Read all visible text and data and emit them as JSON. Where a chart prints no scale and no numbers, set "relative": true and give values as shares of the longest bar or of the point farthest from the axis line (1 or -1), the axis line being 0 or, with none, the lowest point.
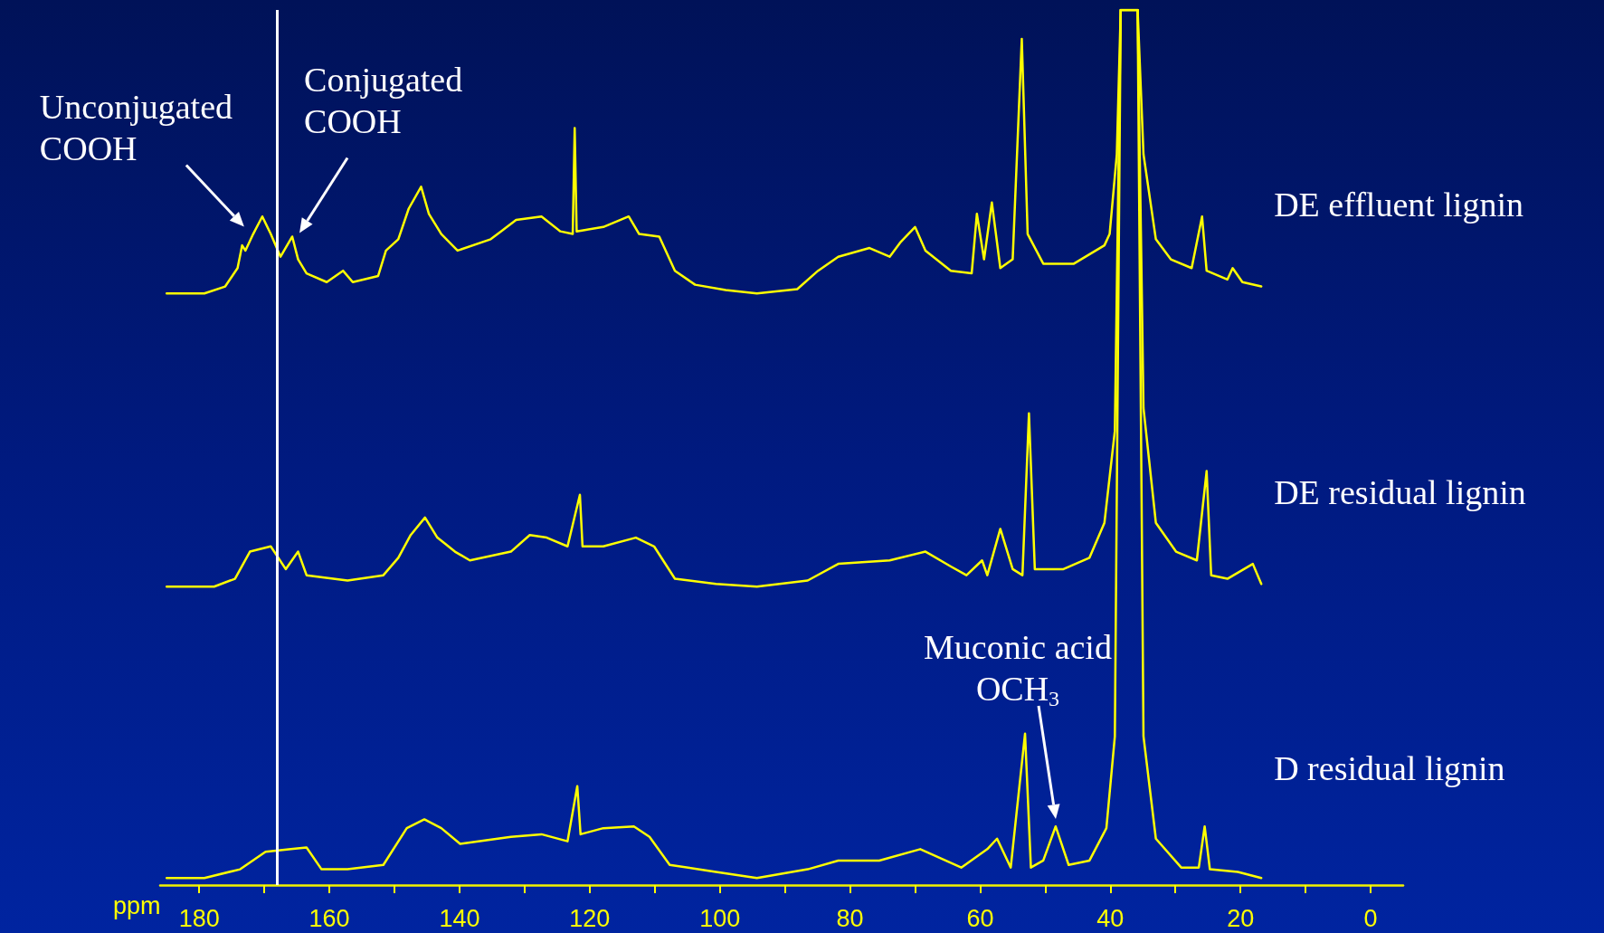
{
  "chart_data": {
    "type": "line",
    "relative": true,
    "xlim": [
      186,
      -5
    ],
    "legend": false,
    "grid": false,
    "marker": "none",
    "line_style": "solid",
    "xlabel": "ppm",
    "xticks": [
      180,
      {
        "value": 170,
        "label": null
      },
      160,
      {
        "value": 150,
        "label": null
      },
      140,
      {
        "value": 130,
        "label": null
      },
      120,
      {
        "value": 110,
        "label": null
      },
      100,
      {
        "value": 90,
        "label": null
      },
      80,
      {
        "value": 70,
        "label": null
      },
      60,
      {
        "value": 50,
        "label": null
      },
      40,
      {
        "value": 30,
        "label": null
      },
      20,
      {
        "value": 10,
        "label": null
      },
      0
    ],
    "annotations": [
      {
        "text": "Unconjugated\nCOOH",
        "x": 171.7,
        "y": 0.744
      },
      {
        "text": "Conjugated\nCOOH",
        "x": 165.7,
        "y": 0.741
      },
      "Muconic acid\nOCH$_{3}$"
    ],
    "ref_lines": [
      {
        "axis": "x",
        "value": 168,
        "color": "#ffffff"
      }
    ],
    "series": [
      {
        "name": "DE effluent lignin",
        "color": "#ffff00",
        "x": [
          185,
          179.2,
          176,
          174.1,
          173.4,
          172.9,
          171.7,
          170.3,
          169,
          167.5,
          165.7,
          164.8,
          163.5,
          160.4,
          157.9,
          156.4,
          152.5,
          151.3,
          149.4,
          147.8,
          145.9,
          144.7,
          142.8,
          140.3,
          135.2,
          131.3,
          127.4,
          124.5,
          122.6,
          122.3,
          122.0,
          117.9,
          114,
          112.4,
          109.3,
          106.9,
          103.8,
          99.1,
          94.3,
          88.1,
          84.9,
          81.8,
          77.0,
          73.9,
          72.3,
          70.0,
          68.4,
          64.5,
          61.3,
          60.5,
          59.4,
          58.2,
          56.9,
          55.0,
          53.6,
          52.7,
          50.3,
          45.6,
          40.9,
          40.1,
          39.0,
          38.4,
          35.8,
          34.9,
          33.0,
          30.7,
          27.5,
          25.9,
          25.2,
          22.0,
          21.2,
          19.7,
          16.8
        ],
        "values": [
          0.676,
          0.676,
          0.684,
          0.705,
          0.731,
          0.725,
          0.744,
          0.764,
          0.744,
          0.718,
          0.741,
          0.715,
          0.699,
          0.689,
          0.702,
          0.689,
          0.696,
          0.725,
          0.738,
          0.773,
          0.798,
          0.767,
          0.744,
          0.725,
          0.738,
          0.76,
          0.764,
          0.747,
          0.744,
          0.865,
          0.747,
          0.752,
          0.764,
          0.744,
          0.741,
          0.702,
          0.686,
          0.68,
          0.676,
          0.681,
          0.702,
          0.718,
          0.728,
          0.718,
          0.734,
          0.752,
          0.725,
          0.702,
          0.699,
          0.767,
          0.715,
          0.78,
          0.705,
          0.715,
          0.967,
          0.744,
          0.71,
          0.71,
          0.731,
          0.744,
          0.835,
          1,
          1,
          0.835,
          0.738,
          0.715,
          0.705,
          0.764,
          0.702,
          0.692,
          0.705,
          0.689,
          0.684
        ]
      },
      {
        "name": "DE residual lignin",
        "color": "#ffff00",
        "x": [
          185,
          177.7,
          174.5,
          172.2,
          169.0,
          166.7,
          164.8,
          163.5,
          157.2,
          151.7,
          149.4,
          147.5,
          145.3,
          143.4,
          140.7,
          138.4,
          132.1,
          129.2,
          126.6,
          123.4,
          121.5,
          121.1,
          117.9,
          112.9,
          110.1,
          106.9,
          100.6,
          94.3,
          86.5,
          81.8,
          73.9,
          68.4,
          64.5,
          62.1,
          59.7,
          58.9,
          56.9,
          55.0,
          53.5,
          52.5,
          51.6,
          47.2,
          43.2,
          40.9,
          39.3,
          38.4,
          35.8,
          34.9,
          33.0,
          29.9,
          26.7,
          25.2,
          24.5,
          22.0,
          18.1,
          16.8
        ],
        "values": [
          0.341,
          0.341,
          0.35,
          0.381,
          0.387,
          0.361,
          0.381,
          0.354,
          0.348,
          0.354,
          0.374,
          0.4,
          0.42,
          0.397,
          0.381,
          0.371,
          0.381,
          0.4,
          0.397,
          0.387,
          0.446,
          0.387,
          0.387,
          0.397,
          0.387,
          0.35,
          0.344,
          0.341,
          0.348,
          0.367,
          0.371,
          0.381,
          0.364,
          0.354,
          0.371,
          0.354,
          0.407,
          0.361,
          0.354,
          0.539,
          0.361,
          0.361,
          0.374,
          0.414,
          0.519,
          1,
          1,
          0.545,
          0.414,
          0.381,
          0.371,
          0.473,
          0.354,
          0.35,
          0.367,
          0.344
        ]
      },
      {
        "name": "D residual lignin",
        "color": "#ffff00",
        "x": [
          185,
          179.2,
          173.7,
          169.8,
          165.9,
          163.5,
          161.2,
          157.2,
          151.7,
          148.1,
          145.4,
          142.8,
          139.9,
          132.1,
          127.4,
          123.4,
          121.9,
          121.4,
          117.9,
          113.2,
          110.8,
          107.7,
          100.6,
          94.3,
          86.5,
          81.8,
          75.5,
          69.2,
          62.9,
          58.9,
          57.4,
          55.3,
          53.1,
          52.2,
          50.3,
          48.4,
          46.4,
          43.2,
          40.6,
          39.3,
          38.4,
          35.8,
          34.9,
          33.0,
          29.1,
          26.4,
          25.5,
          24.7,
          20.4,
          16.8
        ],
        "values": [
          0.008,
          0.008,
          0.018,
          0.038,
          0.041,
          0.043,
          0.018,
          0.018,
          0.023,
          0.065,
          0.075,
          0.065,
          0.047,
          0.055,
          0.058,
          0.05,
          0.113,
          0.058,
          0.065,
          0.067,
          0.055,
          0.023,
          0.015,
          0.008,
          0.018,
          0.028,
          0.028,
          0.041,
          0.02,
          0.041,
          0.053,
          0.02,
          0.173,
          0.02,
          0.028,
          0.067,
          0.023,
          0.028,
          0.065,
          0.17,
          1,
          1,
          0.17,
          0.053,
          0.02,
          0.02,
          0.067,
          0.018,
          0.015,
          0.008
        ]
      }
    ]
  }
}
